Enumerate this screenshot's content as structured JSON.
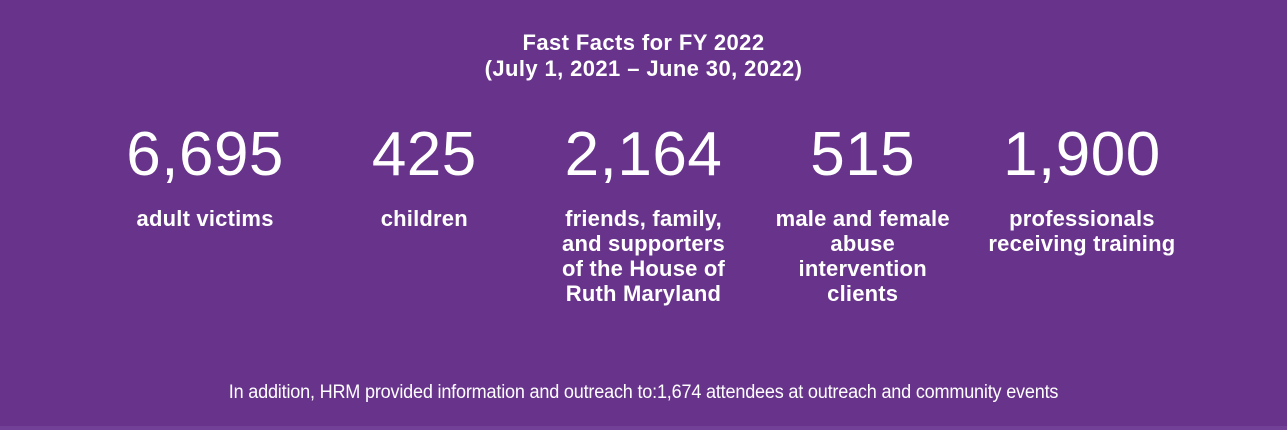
{
  "page": {
    "background": "#67338B",
    "text_color": "#FFFFFF",
    "bottom_edge_color": "#724197"
  },
  "header": {
    "title": "Fast Facts for FY 2022",
    "subtitle": "(July 1, 2021 – June 30, 2022)"
  },
  "stats": [
    {
      "value": "6,695",
      "label_lines": [
        "adult victims"
      ]
    },
    {
      "value": "425",
      "label_lines": [
        "children"
      ]
    },
    {
      "value": "2,164",
      "label_lines": [
        "friends, family,",
        "and supporters",
        "of the House of",
        "Ruth Maryland"
      ]
    },
    {
      "value": "515",
      "label_lines": [
        "male and female",
        "abuse",
        "intervention",
        "clients"
      ]
    },
    {
      "value": "1,900",
      "label_lines": [
        "professionals",
        "receiving training"
      ]
    }
  ],
  "footnote": {
    "text": "In addition, HRM provided information and outreach to:1,674 attendees at outreach and community events"
  }
}
